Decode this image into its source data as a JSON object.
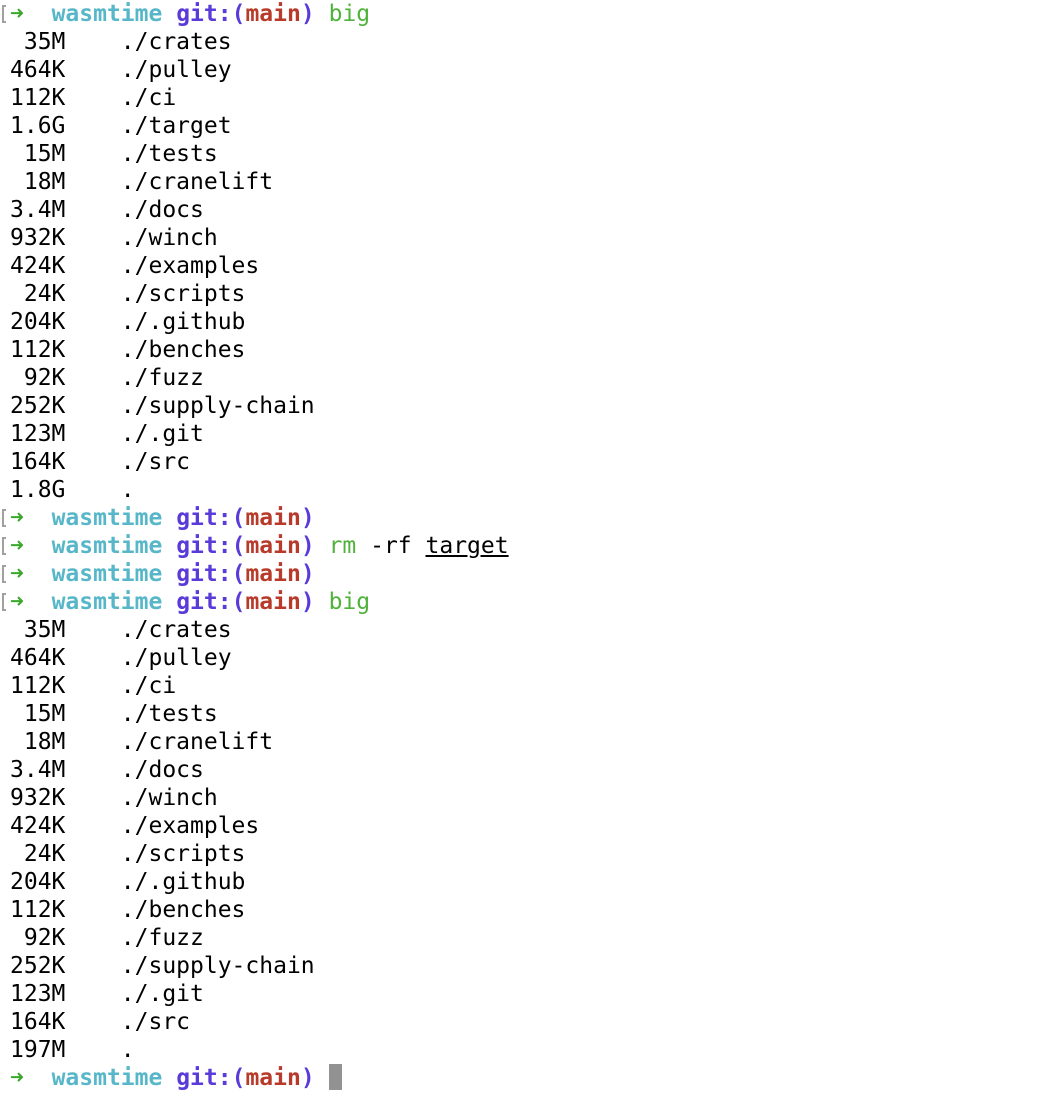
{
  "prompt": {
    "arrow": "➜",
    "dir": "wasmtime",
    "git_label": "git:(",
    "branch": "main",
    "git_close": ")"
  },
  "lines": [
    {
      "type": "prompt",
      "mark": true,
      "cmd": "big"
    },
    {
      "type": "out",
      "size": " 35M",
      "path": "./crates"
    },
    {
      "type": "out",
      "size": "464K",
      "path": "./pulley"
    },
    {
      "type": "out",
      "size": "112K",
      "path": "./ci"
    },
    {
      "type": "out",
      "size": "1.6G",
      "path": "./target"
    },
    {
      "type": "out",
      "size": " 15M",
      "path": "./tests"
    },
    {
      "type": "out",
      "size": " 18M",
      "path": "./cranelift"
    },
    {
      "type": "out",
      "size": "3.4M",
      "path": "./docs"
    },
    {
      "type": "out",
      "size": "932K",
      "path": "./winch"
    },
    {
      "type": "out",
      "size": "424K",
      "path": "./examples"
    },
    {
      "type": "out",
      "size": " 24K",
      "path": "./scripts"
    },
    {
      "type": "out",
      "size": "204K",
      "path": "./.github"
    },
    {
      "type": "out",
      "size": "112K",
      "path": "./benches"
    },
    {
      "type": "out",
      "size": " 92K",
      "path": "./fuzz"
    },
    {
      "type": "out",
      "size": "252K",
      "path": "./supply-chain"
    },
    {
      "type": "out",
      "size": "123M",
      "path": "./.git"
    },
    {
      "type": "out",
      "size": "164K",
      "path": "./src"
    },
    {
      "type": "out",
      "size": "1.8G",
      "path": "."
    },
    {
      "type": "prompt",
      "mark": true,
      "cmd": ""
    },
    {
      "type": "prompt",
      "mark": true,
      "cmd": "rm",
      "args": " -rf ",
      "target": "target"
    },
    {
      "type": "prompt",
      "mark": true,
      "cmd": ""
    },
    {
      "type": "prompt",
      "mark": true,
      "cmd": "big"
    },
    {
      "type": "out",
      "size": " 35M",
      "path": "./crates"
    },
    {
      "type": "out",
      "size": "464K",
      "path": "./pulley"
    },
    {
      "type": "out",
      "size": "112K",
      "path": "./ci"
    },
    {
      "type": "out",
      "size": " 15M",
      "path": "./tests"
    },
    {
      "type": "out",
      "size": " 18M",
      "path": "./cranelift"
    },
    {
      "type": "out",
      "size": "3.4M",
      "path": "./docs"
    },
    {
      "type": "out",
      "size": "932K",
      "path": "./winch"
    },
    {
      "type": "out",
      "size": "424K",
      "path": "./examples"
    },
    {
      "type": "out",
      "size": " 24K",
      "path": "./scripts"
    },
    {
      "type": "out",
      "size": "204K",
      "path": "./.github"
    },
    {
      "type": "out",
      "size": "112K",
      "path": "./benches"
    },
    {
      "type": "out",
      "size": " 92K",
      "path": "./fuzz"
    },
    {
      "type": "out",
      "size": "252K",
      "path": "./supply-chain"
    },
    {
      "type": "out",
      "size": "123M",
      "path": "./.git"
    },
    {
      "type": "out",
      "size": "164K",
      "path": "./src"
    },
    {
      "type": "out",
      "size": "197M",
      "path": "."
    },
    {
      "type": "prompt",
      "mark": false,
      "cmd": "",
      "cursor": true
    }
  ],
  "colors": {
    "arrow": "#3aa82a",
    "dir": "#57b7c8",
    "git": "#5a3ad8",
    "branch": "#b83a2a",
    "command": "#4fb23a",
    "cursor": "#929292"
  }
}
